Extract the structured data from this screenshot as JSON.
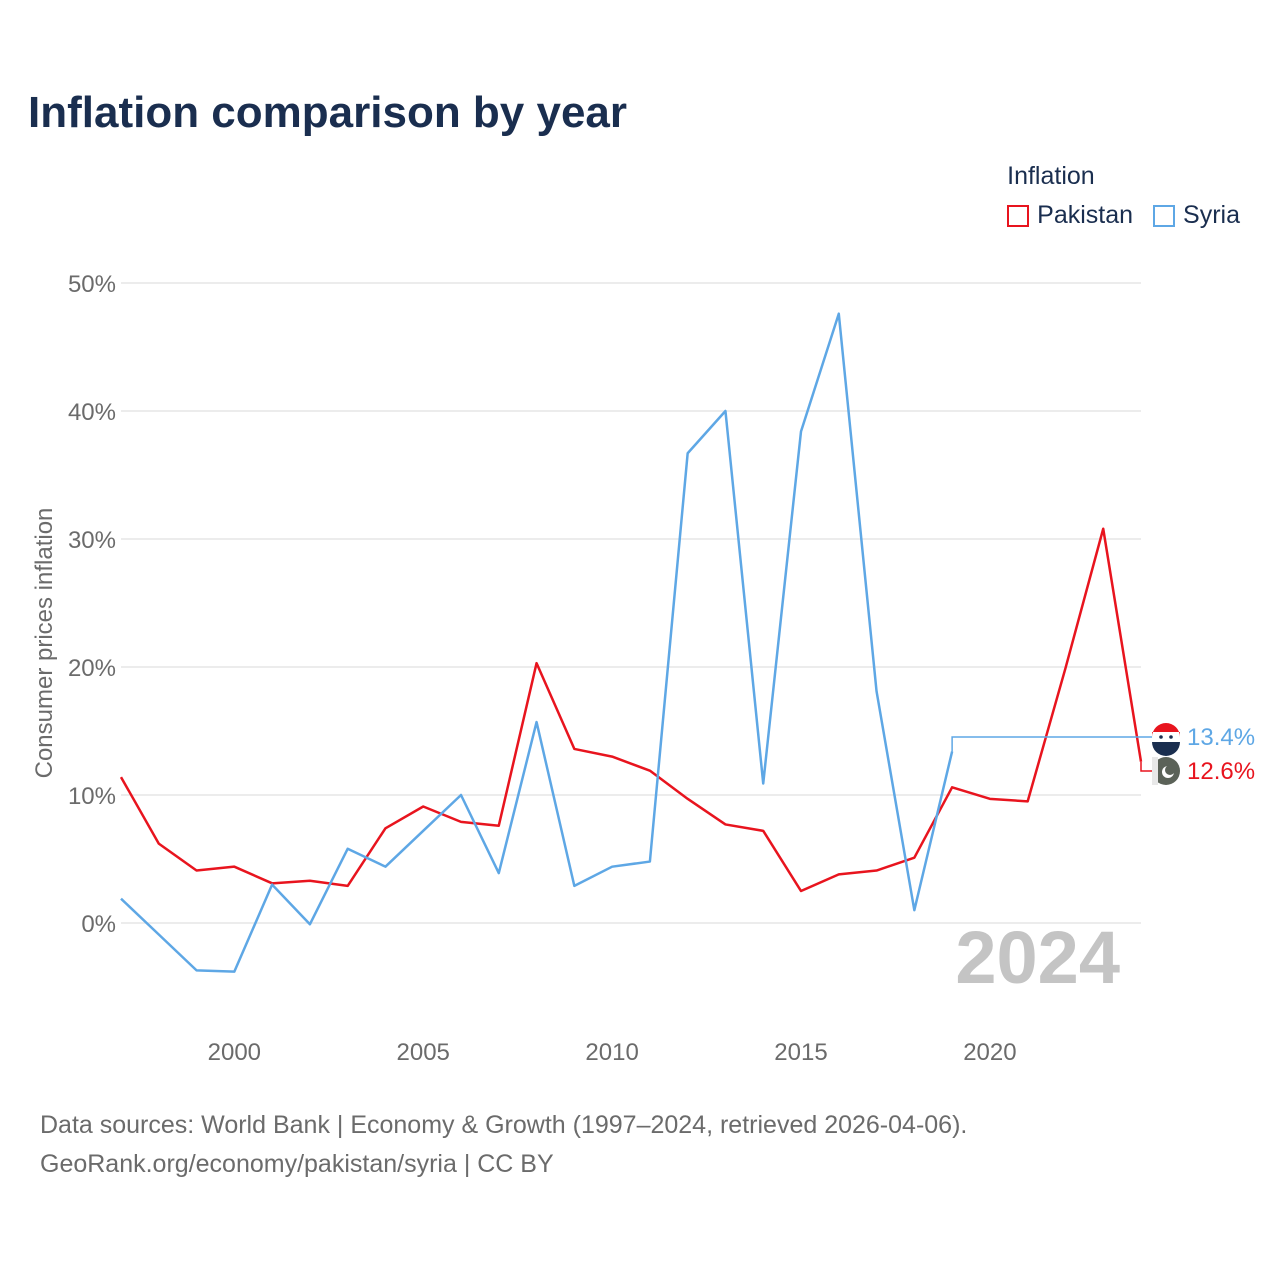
{
  "title": "Inflation comparison by year",
  "legend": {
    "title": "Inflation",
    "items": [
      {
        "label": "Pakistan",
        "color": "#e8141e"
      },
      {
        "label": "Syria",
        "color": "#5ea7e5"
      }
    ]
  },
  "footer": {
    "line1": "Data sources: World Bank | Economy & Growth (1997–2024, retrieved 2026-04-06).",
    "line2": "GeoRank.org/economy/pakistan/syria | CC BY"
  },
  "chart_data": {
    "type": "line",
    "title": "Inflation comparison by year",
    "xlabel": "",
    "ylabel": "Consumer prices inflation",
    "x": [
      1997,
      1998,
      1999,
      2000,
      2001,
      2002,
      2003,
      2004,
      2005,
      2006,
      2007,
      2008,
      2009,
      2010,
      2011,
      2012,
      2013,
      2014,
      2015,
      2016,
      2017,
      2018,
      2019,
      2020,
      2021,
      2022,
      2023,
      2024
    ],
    "xlim": [
      1997,
      2024
    ],
    "ylim": [
      -5,
      50
    ],
    "x_ticks": [
      2000,
      2005,
      2010,
      2015,
      2020
    ],
    "x_tick_labels": [
      "2000",
      "2005",
      "2010",
      "2015",
      "2020"
    ],
    "y_ticks": [
      0,
      10,
      20,
      30,
      40,
      50
    ],
    "y_tick_labels": [
      "0%",
      "10%",
      "20%",
      "30%",
      "40%",
      "50%"
    ],
    "grid": true,
    "year_label": "2024",
    "series": [
      {
        "name": "Pakistan",
        "color": "#e8141e",
        "values": [
          11.4,
          6.2,
          4.1,
          4.4,
          3.1,
          3.3,
          2.9,
          7.4,
          9.1,
          7.9,
          7.6,
          20.3,
          13.6,
          13.0,
          11.9,
          9.7,
          7.7,
          7.2,
          2.5,
          3.8,
          4.1,
          5.1,
          10.6,
          9.7,
          9.5,
          19.9,
          30.8,
          12.6
        ],
        "end_label": "12.6%",
        "end_value": 12.6
      },
      {
        "name": "Syria",
        "color": "#5ea7e5",
        "values": [
          1.9,
          -0.9,
          -3.7,
          -3.8,
          3.0,
          -0.1,
          5.8,
          4.4,
          7.2,
          10.0,
          3.9,
          15.7,
          2.9,
          4.4,
          4.8,
          36.7,
          40.0,
          10.9,
          38.4,
          47.6,
          18.1,
          1.0,
          13.4,
          null,
          null,
          null,
          null,
          null
        ],
        "end_label": "13.4%",
        "end_value": 13.4
      }
    ]
  }
}
